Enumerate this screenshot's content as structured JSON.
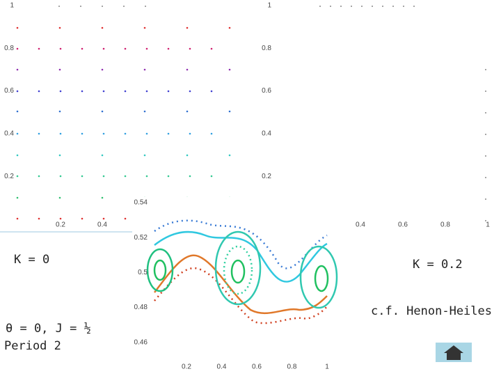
{
  "left_panel": {
    "yticks": [
      "1",
      "0.8",
      "0.6",
      "0.4",
      "0.2"
    ],
    "xticks": [
      "0.2",
      "0.4"
    ],
    "caption": "K = 0"
  },
  "right_panel": {
    "yticks": [
      "1",
      "0.8",
      "0.6",
      "0.4",
      "0.2"
    ],
    "xticks": [
      "0.4",
      "0.6",
      "0.8",
      "1"
    ],
    "caption": "K = 0.2",
    "note": "c.f. Henon-Heiles"
  },
  "inset": {
    "yticks": [
      "0.54",
      "0.52",
      "0.5",
      "0.48",
      "0.46"
    ],
    "xticks": [
      "0.2",
      "0.4",
      "0.6",
      "0.8",
      "1"
    ]
  },
  "orbit_label": {
    "line1": "θ = 0, J = ½",
    "line2": "Period 2"
  }
}
